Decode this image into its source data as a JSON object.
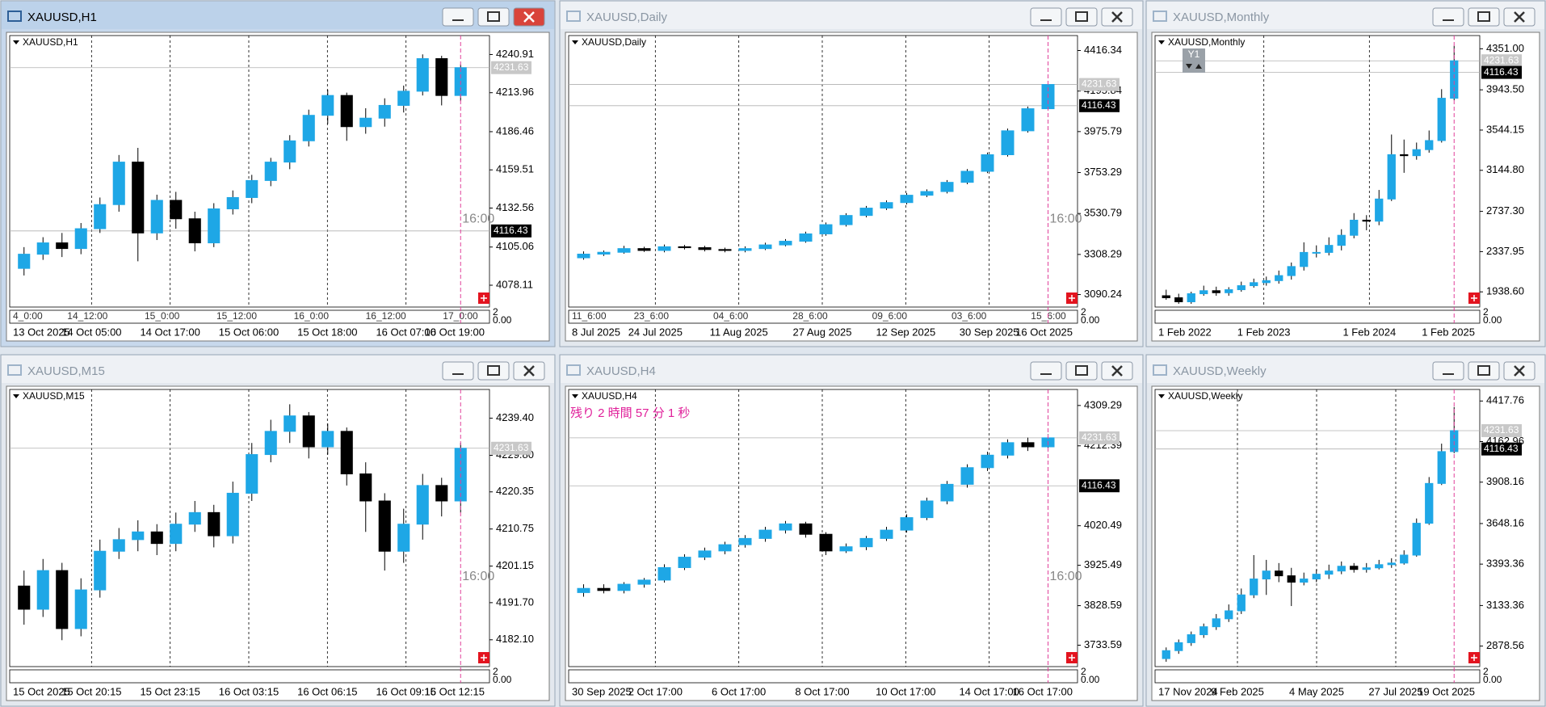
{
  "windows": [
    {
      "title": "XAUUSD,H1",
      "label": "XAUUSD,H1",
      "active": true,
      "chart_data": {
        "type": "candlestick",
        "ylim": [
          4065,
          4252
        ],
        "yticks": [
          4240.91,
          4213.96,
          4186.46,
          4159.51,
          4132.56,
          4105.06,
          4078.11
        ],
        "open": [
          4090,
          4100,
          4108,
          4104,
          4118,
          4135,
          4165,
          4115,
          4138,
          4125,
          4108,
          4132,
          4140,
          4152,
          4165,
          4180,
          4198,
          4212,
          4190,
          4196,
          4205,
          4215,
          4238,
          4212
        ],
        "high": [
          4105,
          4112,
          4115,
          4122,
          4140,
          4170,
          4175,
          4142,
          4144,
          4130,
          4136,
          4145,
          4156,
          4168,
          4184,
          4202,
          4216,
          4214,
          4203,
          4210,
          4219,
          4241,
          4240,
          4234
        ],
        "low": [
          4085,
          4096,
          4098,
          4100,
          4115,
          4130,
          4095,
          4110,
          4118,
          4102,
          4105,
          4128,
          4136,
          4148,
          4160,
          4176,
          4192,
          4180,
          4185,
          4190,
          4200,
          4212,
          4205,
          4208
        ],
        "close": [
          4100,
          4108,
          4104,
          4118,
          4135,
          4165,
          4115,
          4138,
          4125,
          4108,
          4132,
          4140,
          4152,
          4165,
          4180,
          4198,
          4212,
          4190,
          4196,
          4205,
          4215,
          4238,
          4212,
          4231.63
        ],
        "up_color": "#1ea7e6",
        "down_color": "#000000",
        "x_labels": [
          "13 Oct 2025",
          "14 Oct 05:00",
          "14 Oct 17:00",
          "15 Oct 06:00",
          "15 Oct 18:00",
          "16 Oct 07:00",
          "16 Oct 19:00"
        ],
        "separator_labels": [
          "4_0:00",
          "14_12:00",
          "15_0:00",
          "15_12:00",
          "16_0:00",
          "16_12:00",
          "17_0:00"
        ],
        "price_tags": [
          {
            "value": 4231.63,
            "color": "#c8c8c8"
          },
          {
            "value": 4116.43,
            "color": "#000000"
          }
        ],
        "time_marker": "16:00",
        "sub_axis_labels": [
          "2",
          "0.00"
        ]
      }
    },
    {
      "title": "XAUUSD,Daily",
      "label": "XAUUSD,Daily",
      "active": false,
      "chart_data": {
        "type": "candlestick",
        "ylim": [
          3040,
          4480
        ],
        "yticks": [
          4416.34,
          4195.84,
          3975.79,
          3753.29,
          3530.79,
          3308.29,
          3090.24
        ],
        "open": [
          3290,
          3310,
          3320,
          3340,
          3330,
          3350,
          3345,
          3335,
          3330,
          3340,
          3360,
          3380,
          3420,
          3470,
          3520,
          3560,
          3590,
          3630,
          3650,
          3700,
          3760,
          3850,
          3980,
          4100
        ],
        "high": [
          3325,
          3330,
          3355,
          3350,
          3362,
          3360,
          3355,
          3345,
          3352,
          3372,
          3392,
          3432,
          3482,
          3532,
          3572,
          3602,
          3642,
          3662,
          3712,
          3772,
          3862,
          3992,
          4112,
          4245
        ],
        "low": [
          3280,
          3300,
          3312,
          3322,
          3320,
          3335,
          3325,
          3320,
          3320,
          3332,
          3352,
          3372,
          3410,
          3460,
          3510,
          3550,
          3580,
          3620,
          3640,
          3690,
          3750,
          3840,
          3970,
          4090
        ],
        "close": [
          3310,
          3320,
          3340,
          3330,
          3350,
          3345,
          3335,
          3330,
          3340,
          3360,
          3380,
          3420,
          3470,
          3520,
          3560,
          3590,
          3630,
          3650,
          3700,
          3760,
          3850,
          3980,
          4100,
          4231.63
        ],
        "up_color": "#1ea7e6",
        "down_color": "#000000",
        "x_labels": [
          "8 Jul 2025",
          "24 Jul 2025",
          "11 Aug 2025",
          "27 Aug 2025",
          "12 Sep 2025",
          "30 Sep 2025",
          "16 Oct 2025"
        ],
        "separator_labels": [
          "11_6:00",
          "23_6:00",
          "04_6:00",
          "28_6:00",
          "09_6:00",
          "03_6:00",
          "15_6:00"
        ],
        "price_tags": [
          {
            "value": 4231.63,
            "color": "#c8c8c8"
          },
          {
            "value": 4116.43,
            "color": "#000000"
          }
        ],
        "time_marker": "16:00",
        "sub_axis_labels": [
          "2",
          "0.00"
        ]
      }
    },
    {
      "title": "XAUUSD,Monthly",
      "label": "XAUUSD,Monthly",
      "active": false,
      "chart_data": {
        "type": "candlestick",
        "ylim": [
          1820,
          4450
        ],
        "yticks": [
          {
            "value": 4351,
            "label": "4351.00"
          },
          {
            "value": 3943.5,
            "label": "3943.50"
          },
          3544.15,
          {
            "value": 3144.8,
            "label": "3144.80"
          },
          {
            "value": 2737.3,
            "label": "2737.30"
          },
          2337.95,
          {
            "value": 1938.6,
            "label": "1938.60"
          }
        ],
        "open": [
          1900,
          1880,
          1840,
          1920,
          1950,
          1930,
          1960,
          2000,
          2030,
          2050,
          2100,
          2190,
          2330,
          2330,
          2400,
          2500,
          2650,
          2640,
          2860,
          3300,
          3290,
          3350,
          3440,
          3860
        ],
        "high": [
          1960,
          1920,
          1940,
          2000,
          1990,
          1985,
          2040,
          2070,
          2090,
          2150,
          2230,
          2430,
          2400,
          2480,
          2560,
          2720,
          2700,
          2950,
          3500,
          3450,
          3420,
          3540,
          3950,
          4380
        ],
        "low": [
          1860,
          1820,
          1820,
          1900,
          1900,
          1900,
          1940,
          1980,
          2000,
          2020,
          2060,
          2150,
          2280,
          2300,
          2350,
          2470,
          2550,
          2600,
          2840,
          3120,
          3250,
          3320,
          3420,
          3840
        ],
        "close": [
          1880,
          1840,
          1920,
          1950,
          1930,
          1960,
          2000,
          2030,
          2050,
          2100,
          2190,
          2330,
          2330,
          2400,
          2500,
          2650,
          2640,
          2860,
          3300,
          3290,
          3350,
          3440,
          3860,
          4231.63
        ],
        "up_color": "#1ea7e6",
        "down_color": "#000000",
        "x_labels": [
          "1 Feb 2022",
          "1 Feb 2023",
          "1 Feb 2024",
          "1 Feb 2025"
        ],
        "overlay_label": "Y1",
        "price_tags": [
          {
            "value": 4231.63,
            "color": "#c8c8c8"
          },
          {
            "value": 4116.43,
            "color": "#000000"
          }
        ],
        "sub_axis_labels": [
          "2",
          "0.00"
        ]
      }
    },
    {
      "title": "XAUUSD,M15",
      "label": "XAUUSD,M15",
      "active": false,
      "chart_data": {
        "type": "candlestick",
        "ylim": [
          4176,
          4246
        ],
        "yticks": [
          {
            "value": 4239.4,
            "label": "4239.40"
          },
          {
            "value": 4229.8,
            "label": "4229.80"
          },
          4220.35,
          4210.75,
          4201.15,
          {
            "value": 4191.7,
            "label": "4191.70"
          },
          {
            "value": 4182.1,
            "label": "4182.10"
          }
        ],
        "open": [
          4196,
          4190,
          4200,
          4185,
          4195,
          4205,
          4208,
          4210,
          4207,
          4212,
          4215,
          4209,
          4220,
          4230,
          4236,
          4240,
          4232,
          4236,
          4225,
          4218,
          4205,
          4212,
          4222,
          4218
        ],
        "high": [
          4200,
          4203,
          4202,
          4198,
          4208,
          4211,
          4213,
          4212,
          4215,
          4218,
          4217,
          4223,
          4233,
          4239,
          4243,
          4241,
          4238,
          4237,
          4228,
          4220,
          4216,
          4225,
          4224,
          4233
        ],
        "low": [
          4186,
          4188,
          4182,
          4183,
          4193,
          4203,
          4205,
          4204,
          4205,
          4210,
          4206,
          4207,
          4218,
          4228,
          4233,
          4229,
          4230,
          4222,
          4210,
          4200,
          4202,
          4208,
          4214,
          4215
        ],
        "close": [
          4190,
          4200,
          4185,
          4195,
          4205,
          4208,
          4210,
          4207,
          4212,
          4215,
          4209,
          4220,
          4230,
          4236,
          4240,
          4232,
          4236,
          4225,
          4218,
          4205,
          4212,
          4222,
          4218,
          4231.63
        ],
        "up_color": "#1ea7e6",
        "down_color": "#000000",
        "x_labels": [
          "15 Oct 2025",
          "15 Oct 20:15",
          "15 Oct 23:15",
          "16 Oct 03:15",
          "16 Oct 06:15",
          "16 Oct 09:15",
          "16 Oct 12:15"
        ],
        "price_tags": [
          {
            "value": 4231.63,
            "color": "#c8c8c8"
          }
        ],
        "time_marker": "16:00",
        "sub_axis_labels": [
          "2",
          "0.00"
        ]
      }
    },
    {
      "title": "XAUUSD,H4",
      "label": "XAUUSD,H4",
      "active": false,
      "chart_data": {
        "type": "candlestick",
        "ylim": [
          3690,
          4340
        ],
        "yticks": [
          4309.29,
          4212.39,
          4020.49,
          3925.49,
          3828.59,
          3733.59
        ],
        "open": [
          3860,
          3870,
          3865,
          3880,
          3890,
          3920,
          3945,
          3960,
          3975,
          3990,
          4010,
          4025,
          4000,
          3960,
          3970,
          3990,
          4010,
          4040,
          4080,
          4120,
          4160,
          4190,
          4220,
          4210
        ],
        "high": [
          3880,
          3880,
          3885,
          3895,
          3928,
          3952,
          3968,
          3982,
          3998,
          4018,
          4032,
          4030,
          4005,
          3978,
          3996,
          4018,
          4048,
          4088,
          4128,
          4168,
          4198,
          4228,
          4232,
          4240
        ],
        "low": [
          3850,
          3858,
          3858,
          3872,
          3884,
          3914,
          3938,
          3952,
          3968,
          3982,
          4002,
          3992,
          3950,
          3955,
          3962,
          3984,
          4004,
          4034,
          4072,
          4112,
          4152,
          4182,
          4200,
          4205
        ],
        "close": [
          3870,
          3865,
          3880,
          3890,
          3920,
          3945,
          3960,
          3975,
          3990,
          4010,
          4025,
          4000,
          3960,
          3970,
          3990,
          4010,
          4040,
          4080,
          4120,
          4160,
          4190,
          4220,
          4210,
          4231.63
        ],
        "up_color": "#1ea7e6",
        "down_color": "#000000",
        "x_labels": [
          "30 Sep 2025",
          "2 Oct 17:00",
          "6 Oct 17:00",
          "8 Oct 17:00",
          "10 Oct 17:00",
          "14 Oct 17:00",
          "16 Oct 17:00"
        ],
        "countdown": "残り 2 時間 57 分 1 秒",
        "price_tags": [
          {
            "value": 4231.63,
            "color": "#c8c8c8"
          },
          {
            "value": 4116.43,
            "color": "#000000"
          }
        ],
        "time_marker": "16:00",
        "sub_axis_labels": [
          "2",
          "0.00"
        ]
      }
    },
    {
      "title": "XAUUSD,Weekly",
      "label": "XAUUSD,Weekly",
      "active": false,
      "chart_data": {
        "type": "candlestick",
        "ylim": [
          2770,
          4470
        ],
        "yticks": [
          4417.76,
          4162.96,
          3908.16,
          3648.16,
          3393.36,
          3133.36,
          2878.56
        ],
        "open": [
          2800,
          2850,
          2900,
          2950,
          3000,
          3050,
          3100,
          3200,
          3300,
          3350,
          3320,
          3280,
          3300,
          3330,
          3350,
          3380,
          3360,
          3370,
          3390,
          3400,
          3450,
          3650,
          3900,
          4100
        ],
        "high": [
          2870,
          2920,
          2970,
          3020,
          3080,
          3140,
          3240,
          3450,
          3420,
          3400,
          3370,
          3340,
          3360,
          3390,
          3410,
          3400,
          3400,
          3420,
          3430,
          3480,
          3680,
          3940,
          4150,
          4380
        ],
        "low": [
          2780,
          2830,
          2880,
          2930,
          2980,
          3030,
          3080,
          3180,
          3200,
          3280,
          3130,
          3260,
          3280,
          3300,
          3330,
          3340,
          3340,
          3360,
          3370,
          3390,
          3440,
          3640,
          3890,
          4090
        ],
        "close": [
          2850,
          2900,
          2950,
          3000,
          3050,
          3100,
          3200,
          3300,
          3350,
          3320,
          3280,
          3300,
          3330,
          3350,
          3380,
          3360,
          3370,
          3390,
          3400,
          3450,
          3650,
          3900,
          4100,
          4231.63
        ],
        "up_color": "#1ea7e6",
        "down_color": "#000000",
        "x_labels": [
          "17 Nov 2024",
          "9 Feb 2025",
          "4 May 2025",
          "27 Jul 2025",
          "19 Oct 2025"
        ],
        "price_tags": [
          {
            "value": 4231.63,
            "color": "#c8c8c8"
          },
          {
            "value": 4116.43,
            "color": "#000000"
          }
        ],
        "sub_axis_labels": [
          "2",
          "0.00"
        ]
      }
    }
  ]
}
